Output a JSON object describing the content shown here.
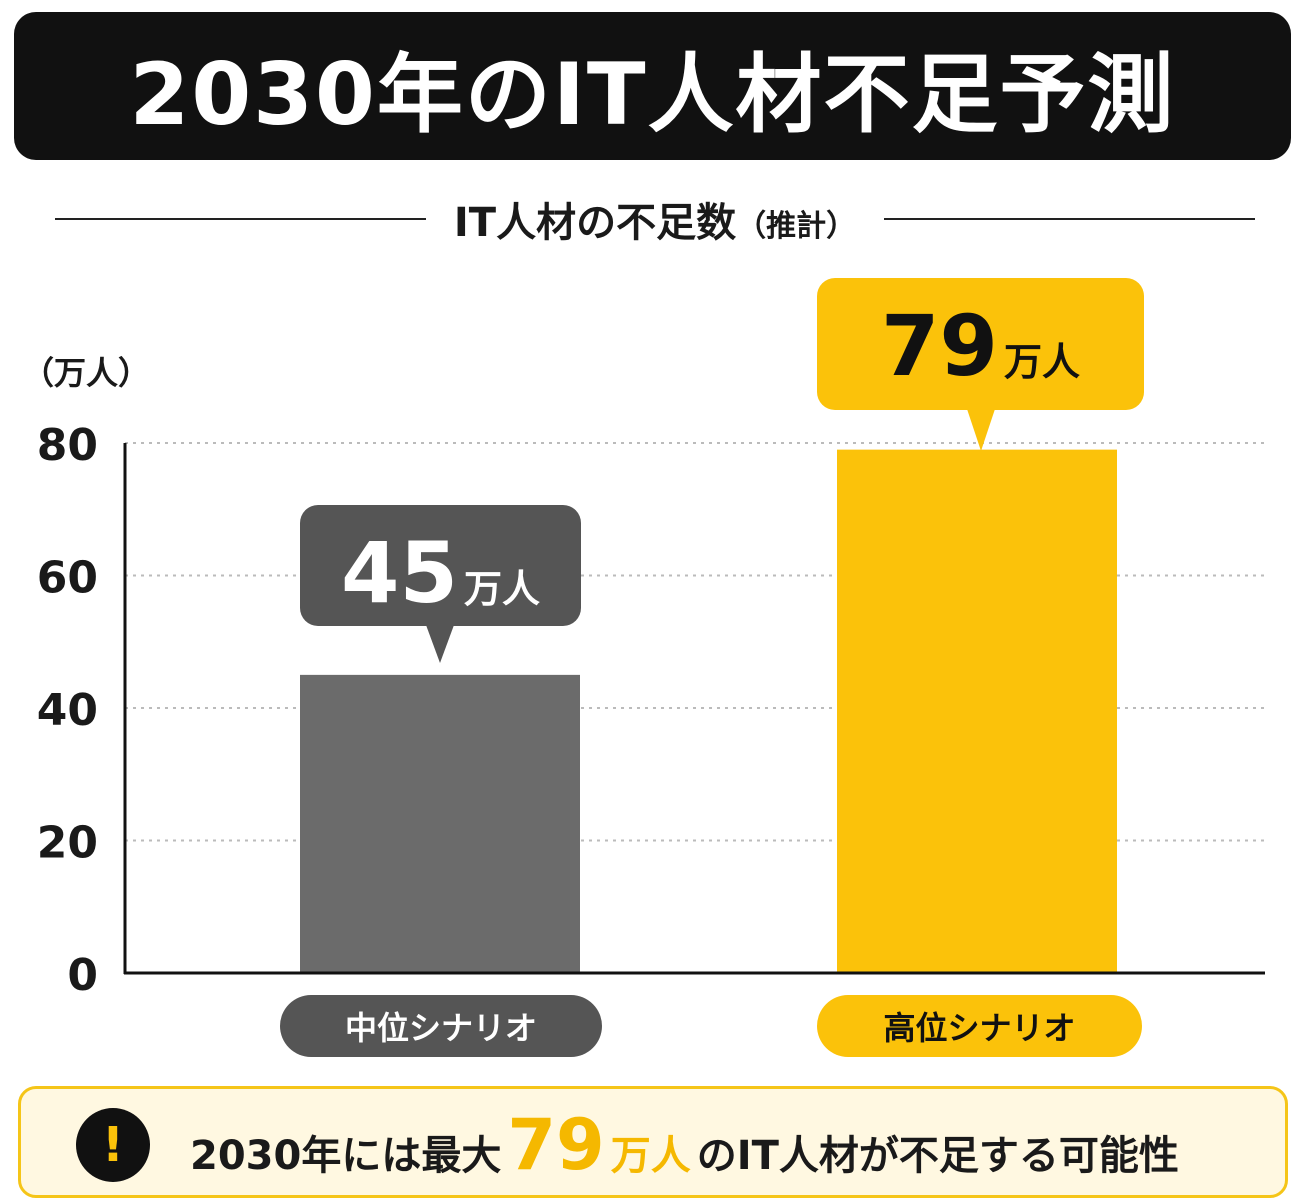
{
  "title": "2030年のIT人材不足予測",
  "subtitle": "IT人材の不足数",
  "subtitle_note": "（推計）",
  "unit_label": "（万人）",
  "colors": {
    "mid": "#6b6b6b",
    "high": "#fbc20a",
    "dark": "#111111"
  },
  "callouts": {
    "mid": {
      "value": "45",
      "unit": "万人"
    },
    "high": {
      "value": "79",
      "unit": "万人"
    }
  },
  "pills": {
    "mid": "中位シナリオ",
    "high": "高位シナリオ"
  },
  "note": {
    "icon": "exclamation-icon",
    "icon_glyph": "!",
    "prefix": "2030年には最大",
    "highlight_value": "79",
    "highlight_unit": "万人",
    "suffix": "のIT人材が不足する可能性"
  },
  "chart_data": {
    "type": "bar",
    "categories": [
      "中位シナリオ",
      "高位シナリオ"
    ],
    "values": [
      45,
      79
    ],
    "title": "IT人材の不足数（推計）",
    "xlabel": "",
    "ylabel": "（万人）",
    "ylim": [
      0,
      80
    ],
    "yticks": [
      0,
      20,
      40,
      60,
      80
    ],
    "grid": true,
    "bar_colors": [
      "#6b6b6b",
      "#fbc20a"
    ]
  }
}
